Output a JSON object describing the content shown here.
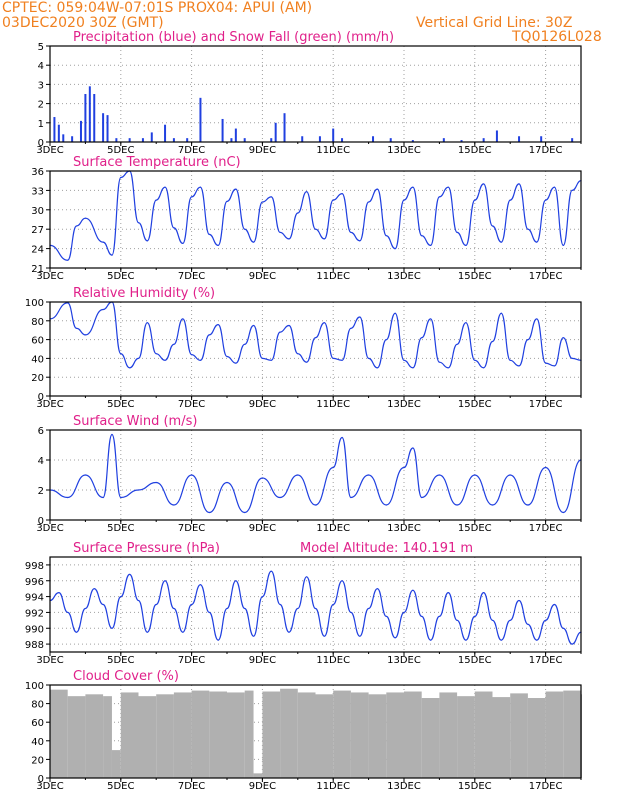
{
  "header": {
    "line1": "CPTEC:   059:04W-07:01S   PROX04: APUI (AM)",
    "line2_left": "03DEC2020 30Z (GMT)",
    "line2_right": "Vertical Grid Line: 30Z",
    "code": "TQ0126L028"
  },
  "colors": {
    "header_text": "#f08020",
    "panel_title": "#e0208a",
    "line": "#2040e0",
    "snow": "#10a010",
    "cloud": "#b0b0b0",
    "grid": "#a0a0a0",
    "axis": "#000000"
  },
  "x_tick_labels": [
    "3DEC",
    "5DEC",
    "7DEC",
    "9DEC",
    "11DEC",
    "13DEC",
    "15DEC",
    "17DEC"
  ],
  "x_range": [
    "3DEC2020",
    "18DEC2020"
  ],
  "chart_data": [
    {
      "type": "bar",
      "title": "Precipitation (blue) and Snow Fall (green) (mm/h)",
      "ylim": [
        0,
        5
      ],
      "y_ticks": [
        0,
        1,
        2,
        3,
        4,
        5
      ],
      "x": [
        "3DEC 03Z",
        "3DEC 06Z",
        "3DEC 09Z",
        "3DEC 15Z",
        "3DEC 21Z",
        "4DEC 00Z",
        "4DEC 03Z",
        "4DEC 06Z",
        "4DEC 12Z",
        "4DEC 15Z",
        "4DEC 21Z",
        "5DEC 06Z",
        "5DEC 15Z",
        "5DEC 21Z",
        "6DEC 06Z",
        "6DEC 12Z",
        "6DEC 21Z",
        "7DEC 06Z",
        "7DEC 21Z",
        "8DEC 03Z",
        "8DEC 06Z",
        "8DEC 12Z",
        "9DEC 06Z",
        "9DEC 09Z",
        "9DEC 15Z",
        "10DEC 03Z",
        "10DEC 15Z",
        "11DEC 00Z",
        "11DEC 06Z",
        "12DEC 03Z",
        "12DEC 15Z",
        "13DEC 06Z",
        "14DEC 03Z",
        "14DEC 15Z",
        "15DEC 06Z",
        "15DEC 15Z",
        "16DEC 06Z",
        "16DEC 21Z",
        "17DEC 18Z"
      ],
      "series": [
        {
          "name": "Precipitation",
          "values": [
            1.3,
            0.9,
            0.4,
            0.3,
            1.1,
            2.5,
            2.9,
            2.5,
            1.5,
            1.4,
            0.2,
            0.2,
            0.2,
            0.5,
            0.9,
            0.2,
            0.2,
            2.3,
            1.2,
            0.2,
            0.7,
            0.2,
            0.2,
            1.0,
            1.5,
            0.3,
            0.3,
            0.7,
            0.2,
            0.3,
            0.2,
            0.1,
            0.2,
            0.1,
            0.2,
            0.6,
            0.3,
            0.3,
            0.2
          ]
        }
      ],
      "snow_values": [
        0,
        0,
        0,
        0,
        0,
        0,
        0,
        0,
        0,
        0,
        0,
        0,
        0,
        0,
        0,
        0,
        0,
        0,
        0,
        0,
        0,
        0,
        0,
        0,
        0,
        0,
        0,
        0,
        0,
        0,
        0,
        0,
        0,
        0,
        0,
        0,
        0,
        0,
        0
      ]
    },
    {
      "type": "line",
      "title": "Surface Temperature (nC)",
      "ylim": [
        21,
        36
      ],
      "y_ticks": [
        21,
        24,
        27,
        30,
        33,
        36
      ],
      "x": [
        "3DEC 00Z",
        "3DEC 12Z",
        "3DEC 18Z",
        "4DEC 00Z",
        "4DEC 12Z",
        "4DEC 18Z",
        "5DEC 00Z",
        "5DEC 06Z",
        "5DEC 12Z",
        "5DEC 18Z",
        "6DEC 00Z",
        "6DEC 06Z",
        "6DEC 12Z",
        "6DEC 18Z",
        "7DEC 00Z",
        "7DEC 06Z",
        "7DEC 12Z",
        "7DEC 18Z",
        "8DEC 00Z",
        "8DEC 06Z",
        "8DEC 12Z",
        "8DEC 18Z",
        "9DEC 00Z",
        "9DEC 06Z",
        "9DEC 12Z",
        "9DEC 18Z",
        "10DEC 00Z",
        "10DEC 06Z",
        "10DEC 12Z",
        "10DEC 18Z",
        "11DEC 00Z",
        "11DEC 06Z",
        "11DEC 12Z",
        "11DEC 18Z",
        "12DEC 00Z",
        "12DEC 06Z",
        "12DEC 12Z",
        "12DEC 18Z",
        "13DEC 00Z",
        "13DEC 06Z",
        "13DEC 12Z",
        "13DEC 18Z",
        "14DEC 00Z",
        "14DEC 06Z",
        "14DEC 12Z",
        "14DEC 18Z",
        "15DEC 00Z",
        "15DEC 06Z",
        "15DEC 12Z",
        "15DEC 18Z",
        "16DEC 00Z",
        "16DEC 06Z",
        "16DEC 12Z",
        "16DEC 18Z",
        "17DEC 00Z",
        "17DEC 06Z",
        "17DEC 12Z",
        "17DEC 18Z",
        "18DEC 00Z"
      ],
      "series": [
        {
          "name": "Surface Temperature",
          "values": [
            24.5,
            22.2,
            27.5,
            28.7,
            25.0,
            23.0,
            35.0,
            36.0,
            28.0,
            25.2,
            31.5,
            33.5,
            27.2,
            24.8,
            32.0,
            33.5,
            26.2,
            24.5,
            31.3,
            33.2,
            27.0,
            25.0,
            31.2,
            32.0,
            26.5,
            25.5,
            29.5,
            32.8,
            27.0,
            25.5,
            31.5,
            32.5,
            26.5,
            25.2,
            31.2,
            33.2,
            26.0,
            24.0,
            31.5,
            33.5,
            26.0,
            24.5,
            32.0,
            33.5,
            26.5,
            24.5,
            31.5,
            34.0,
            27.5,
            25.0,
            31.5,
            34.0,
            27.0,
            25.0,
            31.5,
            33.5,
            24.5,
            33.0,
            34.5
          ]
        }
      ]
    },
    {
      "type": "line",
      "title": "Relative Humidity (%)",
      "ylim": [
        0,
        100
      ],
      "y_ticks": [
        0,
        20,
        40,
        60,
        80,
        100
      ],
      "x": [
        "3DEC 00Z",
        "3DEC 12Z",
        "3DEC 18Z",
        "4DEC 00Z",
        "4DEC 12Z",
        "4DEC 18Z",
        "5DEC 00Z",
        "5DEC 06Z",
        "5DEC 12Z",
        "5DEC 18Z",
        "6DEC 00Z",
        "6DEC 06Z",
        "6DEC 12Z",
        "6DEC 18Z",
        "7DEC 00Z",
        "7DEC 06Z",
        "7DEC 12Z",
        "7DEC 18Z",
        "8DEC 00Z",
        "8DEC 06Z",
        "8DEC 12Z",
        "8DEC 18Z",
        "9DEC 00Z",
        "9DEC 06Z",
        "9DEC 12Z",
        "9DEC 18Z",
        "10DEC 00Z",
        "10DEC 06Z",
        "10DEC 12Z",
        "10DEC 18Z",
        "11DEC 00Z",
        "11DEC 06Z",
        "11DEC 12Z",
        "11DEC 18Z",
        "12DEC 00Z",
        "12DEC 06Z",
        "12DEC 12Z",
        "12DEC 18Z",
        "13DEC 00Z",
        "13DEC 06Z",
        "13DEC 12Z",
        "13DEC 18Z",
        "14DEC 00Z",
        "14DEC 06Z",
        "14DEC 12Z",
        "14DEC 18Z",
        "15DEC 00Z",
        "15DEC 06Z",
        "15DEC 12Z",
        "15DEC 18Z",
        "16DEC 00Z",
        "16DEC 06Z",
        "16DEC 12Z",
        "16DEC 18Z",
        "17DEC 00Z",
        "17DEC 06Z",
        "17DEC 12Z",
        "17DEC 18Z",
        "18DEC 00Z"
      ],
      "series": [
        {
          "name": "Relative Humidity",
          "values": [
            82,
            99,
            72,
            65,
            92,
            100,
            45,
            30,
            40,
            78,
            45,
            38,
            55,
            82,
            44,
            38,
            65,
            76,
            42,
            35,
            55,
            75,
            40,
            38,
            68,
            75,
            45,
            36,
            62,
            78,
            40,
            38,
            72,
            84,
            40,
            30,
            60,
            88,
            38,
            30,
            62,
            82,
            36,
            30,
            55,
            78,
            38,
            30,
            58,
            88,
            38,
            32,
            60,
            82,
            35,
            32,
            62,
            40,
            38
          ]
        }
      ]
    },
    {
      "type": "line",
      "title": "Surface Wind (m/s)",
      "ylim": [
        0,
        6
      ],
      "y_ticks": [
        0,
        2,
        4,
        6
      ],
      "x": [
        "3DEC 00Z",
        "3DEC 12Z",
        "4DEC 00Z",
        "4DEC 12Z",
        "4DEC 18Z",
        "5DEC 00Z",
        "5DEC 12Z",
        "6DEC 00Z",
        "6DEC 12Z",
        "7DEC 00Z",
        "7DEC 12Z",
        "8DEC 00Z",
        "8DEC 12Z",
        "9DEC 00Z",
        "9DEC 12Z",
        "10DEC 00Z",
        "10DEC 12Z",
        "11DEC 00Z",
        "11DEC 06Z",
        "11DEC 12Z",
        "12DEC 00Z",
        "12DEC 12Z",
        "13DEC 00Z",
        "13DEC 06Z",
        "13DEC 12Z",
        "14DEC 00Z",
        "14DEC 12Z",
        "15DEC 00Z",
        "15DEC 12Z",
        "16DEC 00Z",
        "16DEC 12Z",
        "17DEC 00Z",
        "17DEC 12Z",
        "18DEC 00Z"
      ],
      "series": [
        {
          "name": "Surface Wind",
          "values": [
            2.0,
            1.5,
            3.0,
            1.5,
            5.7,
            1.5,
            2.0,
            2.5,
            1.0,
            3.0,
            0.5,
            2.5,
            0.5,
            2.8,
            1.5,
            3.0,
            1.0,
            3.5,
            5.5,
            1.5,
            3.0,
            1.0,
            3.5,
            4.8,
            1.5,
            3.0,
            1.0,
            3.0,
            1.0,
            3.0,
            1.0,
            3.5,
            0.5,
            4.0
          ]
        }
      ]
    },
    {
      "type": "line",
      "title": "Surface Pressure (hPa)",
      "annotation": "Model Altitude: 140.191 m",
      "ylim": [
        987,
        999
      ],
      "y_ticks": [
        988,
        990,
        992,
        994,
        996,
        998
      ],
      "x": [
        "3DEC 00Z",
        "3DEC 06Z",
        "3DEC 12Z",
        "3DEC 18Z",
        "4DEC 00Z",
        "4DEC 06Z",
        "4DEC 12Z",
        "4DEC 18Z",
        "5DEC 00Z",
        "5DEC 06Z",
        "5DEC 12Z",
        "5DEC 18Z",
        "6DEC 00Z",
        "6DEC 06Z",
        "6DEC 12Z",
        "6DEC 18Z",
        "7DEC 00Z",
        "7DEC 06Z",
        "7DEC 12Z",
        "7DEC 18Z",
        "8DEC 00Z",
        "8DEC 06Z",
        "8DEC 12Z",
        "8DEC 18Z",
        "9DEC 00Z",
        "9DEC 06Z",
        "9DEC 12Z",
        "9DEC 18Z",
        "10DEC 00Z",
        "10DEC 06Z",
        "10DEC 12Z",
        "10DEC 18Z",
        "11DEC 00Z",
        "11DEC 06Z",
        "11DEC 12Z",
        "11DEC 18Z",
        "12DEC 00Z",
        "12DEC 06Z",
        "12DEC 12Z",
        "12DEC 18Z",
        "13DEC 00Z",
        "13DEC 06Z",
        "13DEC 12Z",
        "13DEC 18Z",
        "14DEC 00Z",
        "14DEC 06Z",
        "14DEC 12Z",
        "14DEC 18Z",
        "15DEC 00Z",
        "15DEC 06Z",
        "15DEC 12Z",
        "15DEC 18Z",
        "16DEC 00Z",
        "16DEC 06Z",
        "16DEC 12Z",
        "16DEC 18Z",
        "17DEC 00Z",
        "17DEC 06Z",
        "17DEC 12Z",
        "17DEC 18Z",
        "18DEC 00Z"
      ],
      "series": [
        {
          "name": "Surface Pressure",
          "values": [
            993.5,
            994.5,
            992.0,
            989.5,
            992.5,
            995.0,
            993.0,
            990.0,
            994.0,
            996.8,
            993.5,
            989.5,
            993.0,
            996.0,
            992.5,
            989.5,
            993.0,
            995.5,
            992.0,
            988.5,
            992.5,
            996.0,
            992.5,
            989.0,
            994.0,
            997.2,
            993.0,
            989.5,
            992.5,
            996.5,
            992.5,
            989.0,
            993.0,
            996.0,
            992.0,
            989.0,
            992.5,
            995.0,
            991.5,
            988.8,
            992.0,
            994.8,
            991.5,
            988.5,
            991.5,
            994.5,
            991.0,
            988.5,
            991.5,
            994.5,
            991.0,
            988.5,
            991.0,
            993.5,
            990.5,
            988.5,
            991.0,
            993.0,
            990.0,
            988.0,
            989.5
          ]
        }
      ]
    },
    {
      "type": "area",
      "title": "Cloud Cover (%)",
      "ylim": [
        0,
        100
      ],
      "y_ticks": [
        0,
        20,
        40,
        60,
        80,
        100
      ],
      "x": [
        "3DEC 00Z",
        "3DEC 12Z",
        "4DEC 00Z",
        "4DEC 12Z",
        "4DEC 18Z",
        "5DEC 00Z",
        "5DEC 12Z",
        "6DEC 00Z",
        "6DEC 12Z",
        "7DEC 00Z",
        "7DEC 12Z",
        "8DEC 00Z",
        "8DEC 12Z",
        "8DEC 18Z",
        "9DEC 00Z",
        "9DEC 12Z",
        "10DEC 00Z",
        "10DEC 12Z",
        "11DEC 00Z",
        "11DEC 12Z",
        "12DEC 00Z",
        "12DEC 12Z",
        "13DEC 00Z",
        "13DEC 12Z",
        "14DEC 00Z",
        "14DEC 12Z",
        "15DEC 00Z",
        "15DEC 12Z",
        "16DEC 00Z",
        "16DEC 12Z",
        "17DEC 00Z",
        "17DEC 12Z",
        "18DEC 00Z"
      ],
      "series": [
        {
          "name": "Cloud Cover",
          "values": [
            95,
            88,
            90,
            88,
            30,
            92,
            88,
            90,
            92,
            94,
            93,
            92,
            94,
            5,
            93,
            96,
            92,
            90,
            94,
            92,
            90,
            92,
            93,
            86,
            92,
            88,
            93,
            87,
            91,
            86,
            93,
            94,
            90
          ]
        }
      ]
    }
  ]
}
